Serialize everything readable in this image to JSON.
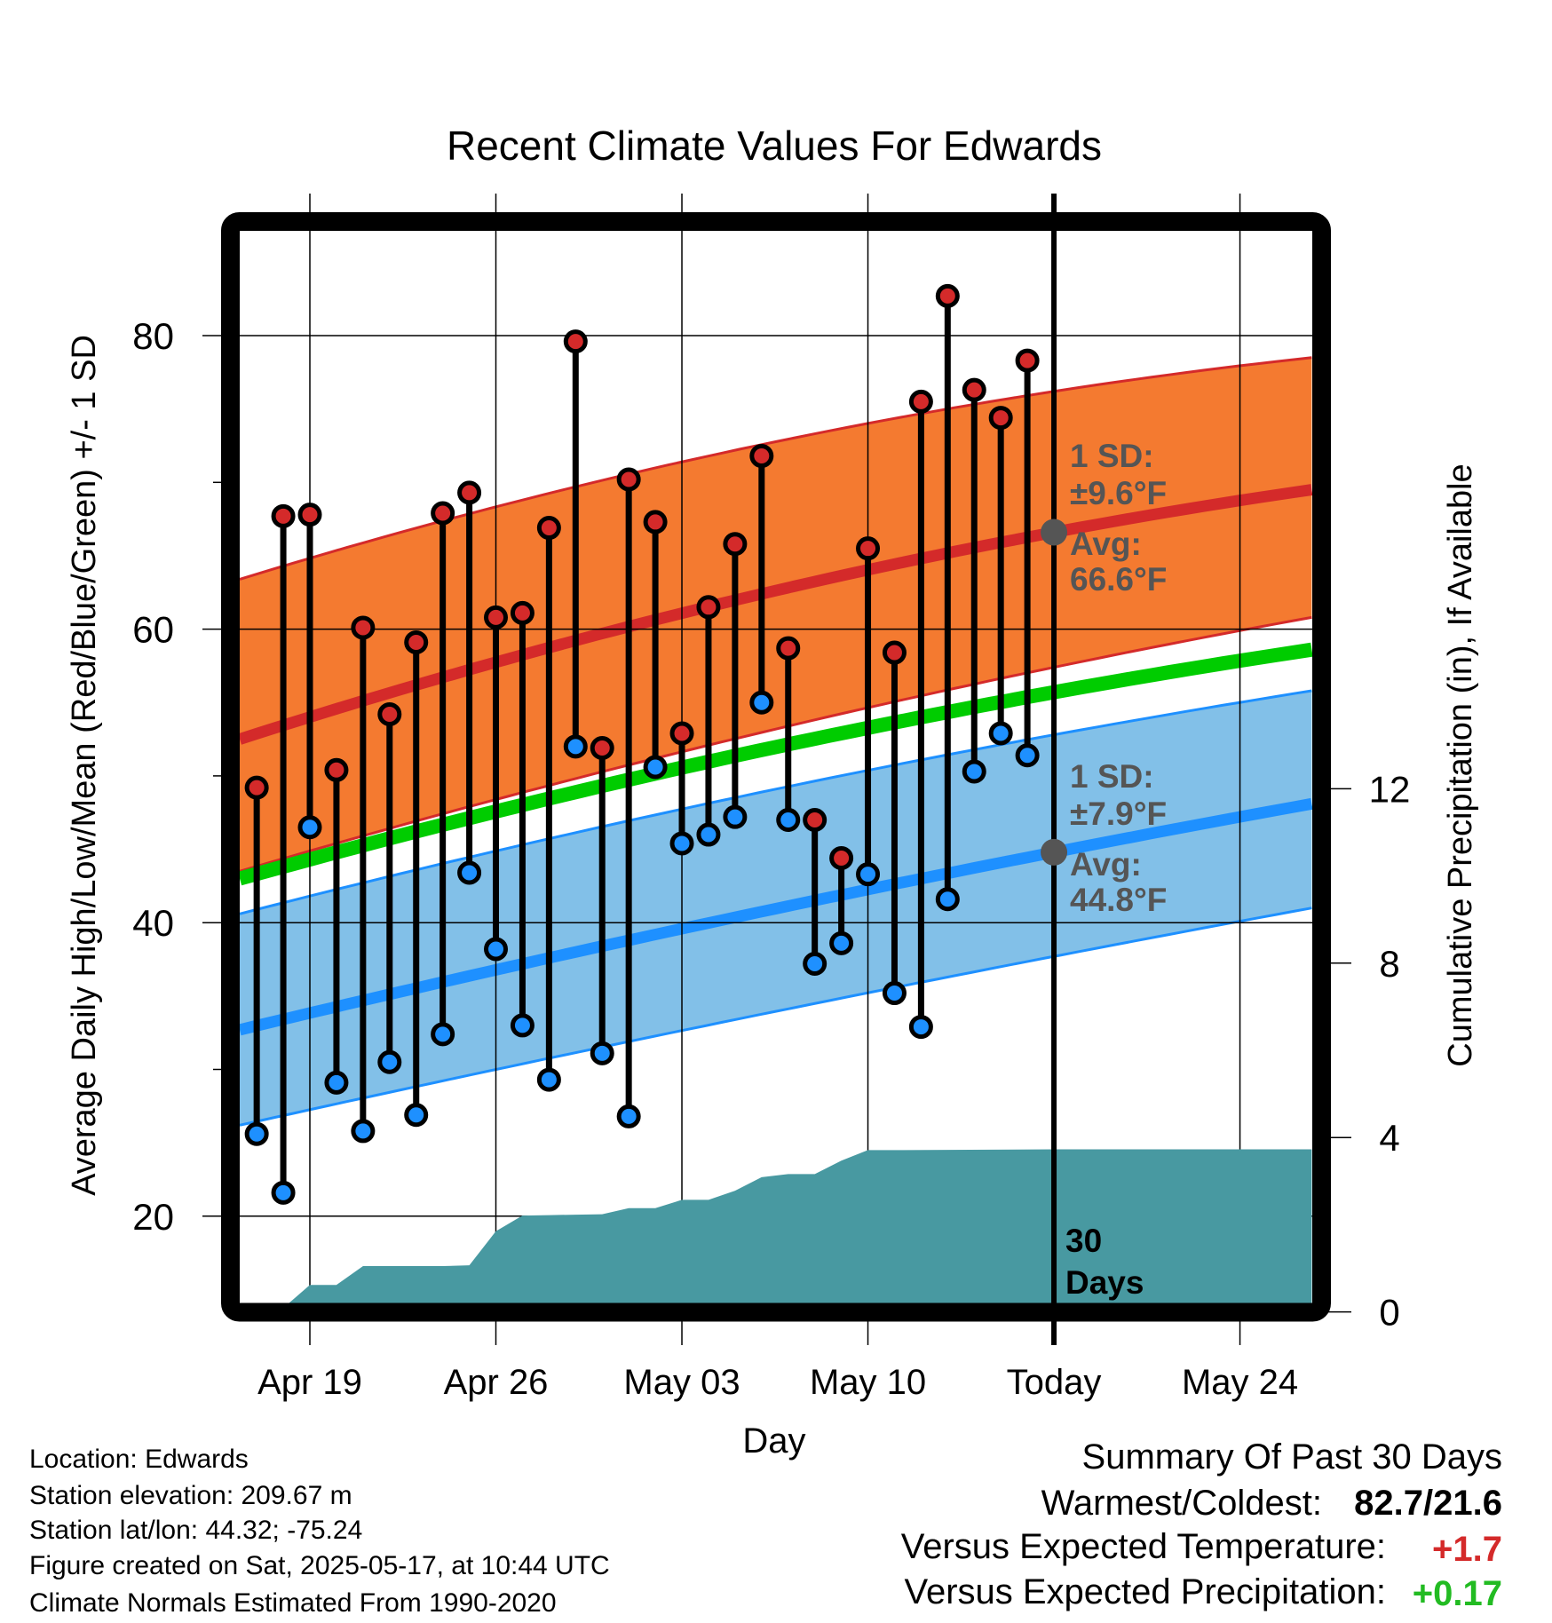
{
  "chart_data": {
    "type": "line",
    "title": "Recent Climate Values For Edwards",
    "xlabel": "Day",
    "ylabel": "Average Daily High/Low/Mean (Red/Blue/Green) +/- 1 SD",
    "y2label": "Cumulative Precipitation (in), If Available",
    "ylim": [
      13.5,
      87.5
    ],
    "y2lim": [
      0,
      22
    ],
    "yticks": [
      {
        "v": 20,
        "label": "20"
      },
      {
        "v": 40,
        "label": "40"
      },
      {
        "v": 60,
        "label": "60"
      },
      {
        "v": 80,
        "label": "80"
      }
    ],
    "y_minor_ticks": [
      30,
      50,
      70
    ],
    "y2ticks": [
      {
        "v": 0,
        "label": "0"
      },
      {
        "v": 4,
        "label": "4"
      },
      {
        "v": 8,
        "label": "8"
      },
      {
        "v": 12,
        "label": "12"
      }
    ],
    "xticks": [
      {
        "day": 2,
        "label": "Apr 19"
      },
      {
        "day": 9,
        "label": "Apr 26"
      },
      {
        "day": 16,
        "label": "May 03"
      },
      {
        "day": 23,
        "label": "May 10"
      },
      {
        "day": 30,
        "label": "Today"
      },
      {
        "day": 37,
        "label": "May 24"
      }
    ],
    "x_range_days": [
      -0.64,
      39.7
    ],
    "day0": "Apr 17",
    "grid": true,
    "observations": {
      "dates": [
        "Apr 17",
        "Apr 18",
        "Apr 19",
        "Apr 20",
        "Apr 21",
        "Apr 22",
        "Apr 23",
        "Apr 24",
        "Apr 25",
        "Apr 26",
        "Apr 27",
        "Apr 28",
        "Apr 29",
        "Apr 30",
        "May 01",
        "May 02",
        "May 03",
        "May 04",
        "May 05",
        "May 06",
        "May 07",
        "May 08",
        "May 09",
        "May 10",
        "May 11",
        "May 12",
        "May 13",
        "May 14",
        "May 15",
        "May 16"
      ],
      "high": [
        49.2,
        67.7,
        67.8,
        50.4,
        60.1,
        54.2,
        59.1,
        67.9,
        69.3,
        60.8,
        61.1,
        66.9,
        79.6,
        51.9,
        70.2,
        67.3,
        52.9,
        61.5,
        65.8,
        71.8,
        58.7,
        47.0,
        44.4,
        65.5,
        58.4,
        75.5,
        82.7,
        76.3,
        74.4,
        78.3
      ],
      "low": [
        25.6,
        21.6,
        46.5,
        29.1,
        25.8,
        30.5,
        26.9,
        32.4,
        43.4,
        38.2,
        33.0,
        29.3,
        52.0,
        31.1,
        26.8,
        50.6,
        45.4,
        46.0,
        47.2,
        55.0,
        47.0,
        37.2,
        38.6,
        43.3,
        35.2,
        32.9,
        41.6,
        50.3,
        52.9,
        51.4
      ]
    },
    "normals": {
      "days": [
        -0.64,
        30,
        39.7
      ],
      "high_mean": [
        52.5,
        66.6,
        69.5
      ],
      "high_upper": [
        63.4,
        76.2,
        78.5
      ],
      "high_lower": [
        43.5,
        57.4,
        60.8
      ],
      "mean": [
        43.0,
        55.7,
        58.6
      ],
      "low_mean": [
        32.7,
        44.8,
        48.1
      ],
      "low_upper": [
        40.6,
        52.8,
        55.8
      ],
      "low_lower": [
        26.2,
        37.7,
        41.0
      ]
    },
    "precip_cumulative": {
      "days": [
        1.2,
        2,
        3,
        4,
        5,
        6,
        7,
        8,
        9,
        10,
        11,
        12,
        13,
        14,
        15,
        16,
        17,
        18,
        19,
        20,
        21,
        22,
        23,
        24,
        30,
        39.7
      ],
      "values": [
        0,
        0.62,
        0.62,
        1.05,
        1.05,
        1.05,
        1.05,
        1.07,
        1.85,
        2.21,
        2.22,
        2.23,
        2.24,
        2.38,
        2.38,
        2.57,
        2.57,
        2.78,
        3.09,
        3.16,
        3.16,
        3.47,
        3.71,
        3.71,
        3.73,
        3.73
      ]
    },
    "annotations": {
      "high_sd_label": "1 SD:",
      "high_sd_value": "±9.6°F",
      "high_avg_label": "Avg:",
      "high_avg_value": "66.6°F",
      "low_sd_label": "1 SD:",
      "low_sd_value": "±7.9°F",
      "low_avg_label": "Avg:",
      "low_avg_value": "44.8°F",
      "window_line1": "30",
      "window_line2": "Days"
    }
  },
  "colors": {
    "high": "#d42a2a",
    "high_band": "#f47a30",
    "mean": "#00cc00",
    "low": "#1e90ff",
    "low_band": "#82c0e8",
    "precip": "#4899a1",
    "annotation": "#555555",
    "positive_temp": "#d42a2a",
    "positive_precip": "#22bb22"
  },
  "footer": {
    "location": "Location: Edwards",
    "elevation": "Station elevation: 209.67 m",
    "latlon": "Station lat/lon: 44.32; -75.24",
    "created": "Figure created on Sat, 2025-05-17, at 10:44 UTC",
    "normals": "Climate Normals Estimated From 1990-2020"
  },
  "summary": {
    "title": "Summary Of Past 30 Days",
    "warmest_label": "Warmest/Coldest:",
    "warmest_value": "82.7/21.6",
    "temp_label": "Versus Expected Temperature:",
    "temp_value": "+1.7",
    "precip_label": "Versus Expected Precipitation:",
    "precip_value": "+0.17"
  }
}
